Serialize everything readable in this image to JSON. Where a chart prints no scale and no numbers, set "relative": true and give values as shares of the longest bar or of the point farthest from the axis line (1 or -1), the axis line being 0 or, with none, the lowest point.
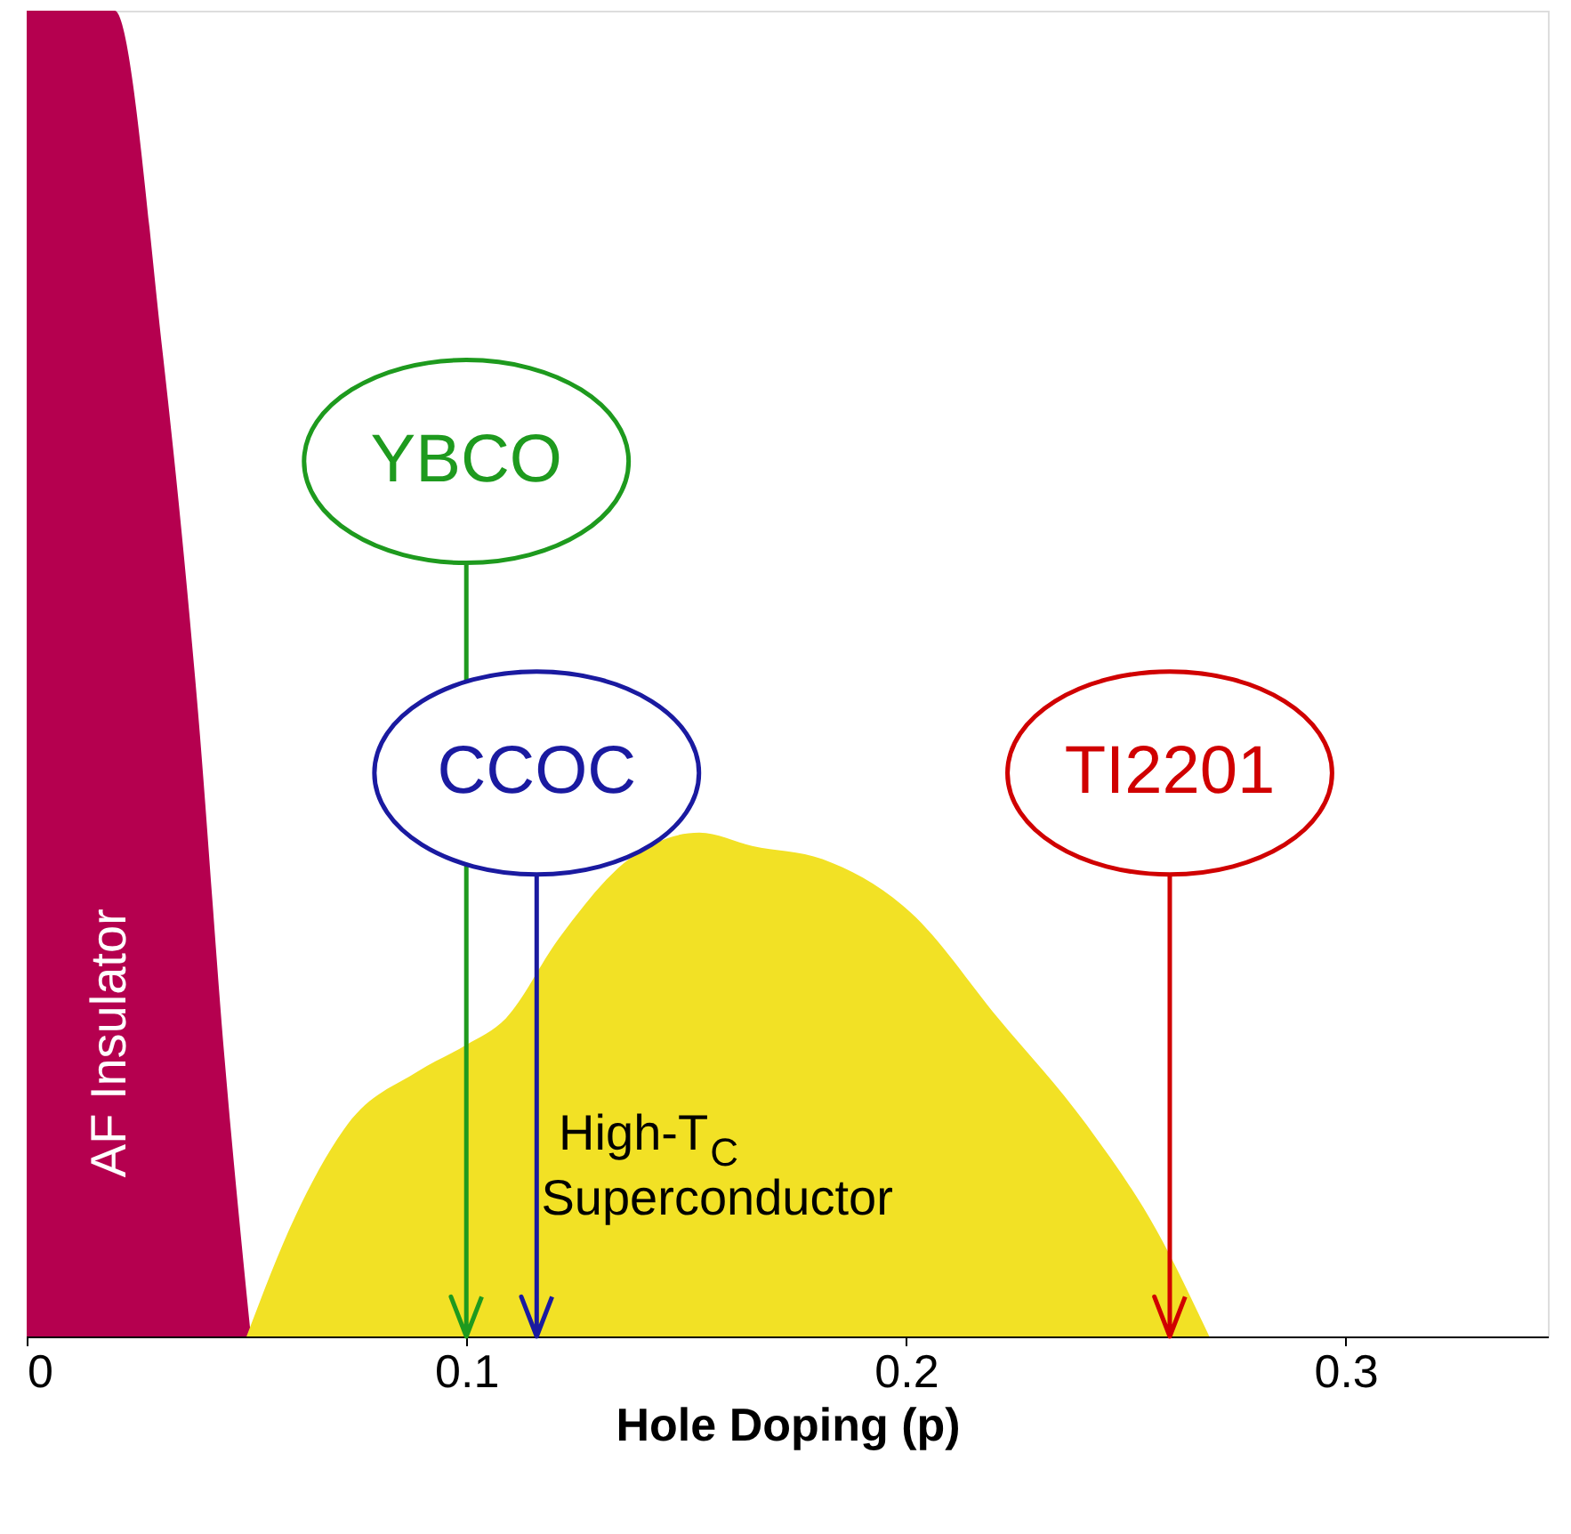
{
  "chart_data": {
    "type": "area",
    "relative": true,
    "xlabel": "Hole Doping  (p)",
    "xlim": [
      0,
      0.346
    ],
    "xticks": [
      0,
      0.1,
      0.2,
      0.3
    ],
    "series": [
      {
        "name": "AF Insulator",
        "color": "#b5004f",
        "x": [
          0,
          0.02,
          0.031,
          0.039,
          0.045,
          0.051
        ],
        "values": [
          1,
          1,
          0.74,
          0.47,
          0.21,
          0
        ]
      },
      {
        "name": "High-T$_{C}$ Superconductor",
        "color": "#f2e125",
        "x": [
          0.05,
          0.061,
          0.073,
          0.089,
          0.1,
          0.109,
          0.121,
          0.137,
          0.153,
          0.165,
          0.181,
          0.201,
          0.221,
          0.241,
          0.257,
          0.269
        ],
        "values": [
          0,
          0.09,
          0.16,
          0.2,
          0.22,
          0.24,
          0.3,
          0.36,
          0.38,
          0.37,
          0.36,
          0.32,
          0.24,
          0.16,
          0.08,
          0
        ]
      }
    ],
    "ref_lines": [
      {
        "axis": "x",
        "value": 0.1,
        "label": "YBCO",
        "color": "#1e9a1e"
      },
      {
        "axis": "x",
        "value": 0.116,
        "label": "CCOC",
        "color": "#1a1aa0"
      },
      {
        "axis": "x",
        "value": 0.26,
        "label": "TI2201",
        "color": "#d00000"
      }
    ],
    "grid": false
  }
}
